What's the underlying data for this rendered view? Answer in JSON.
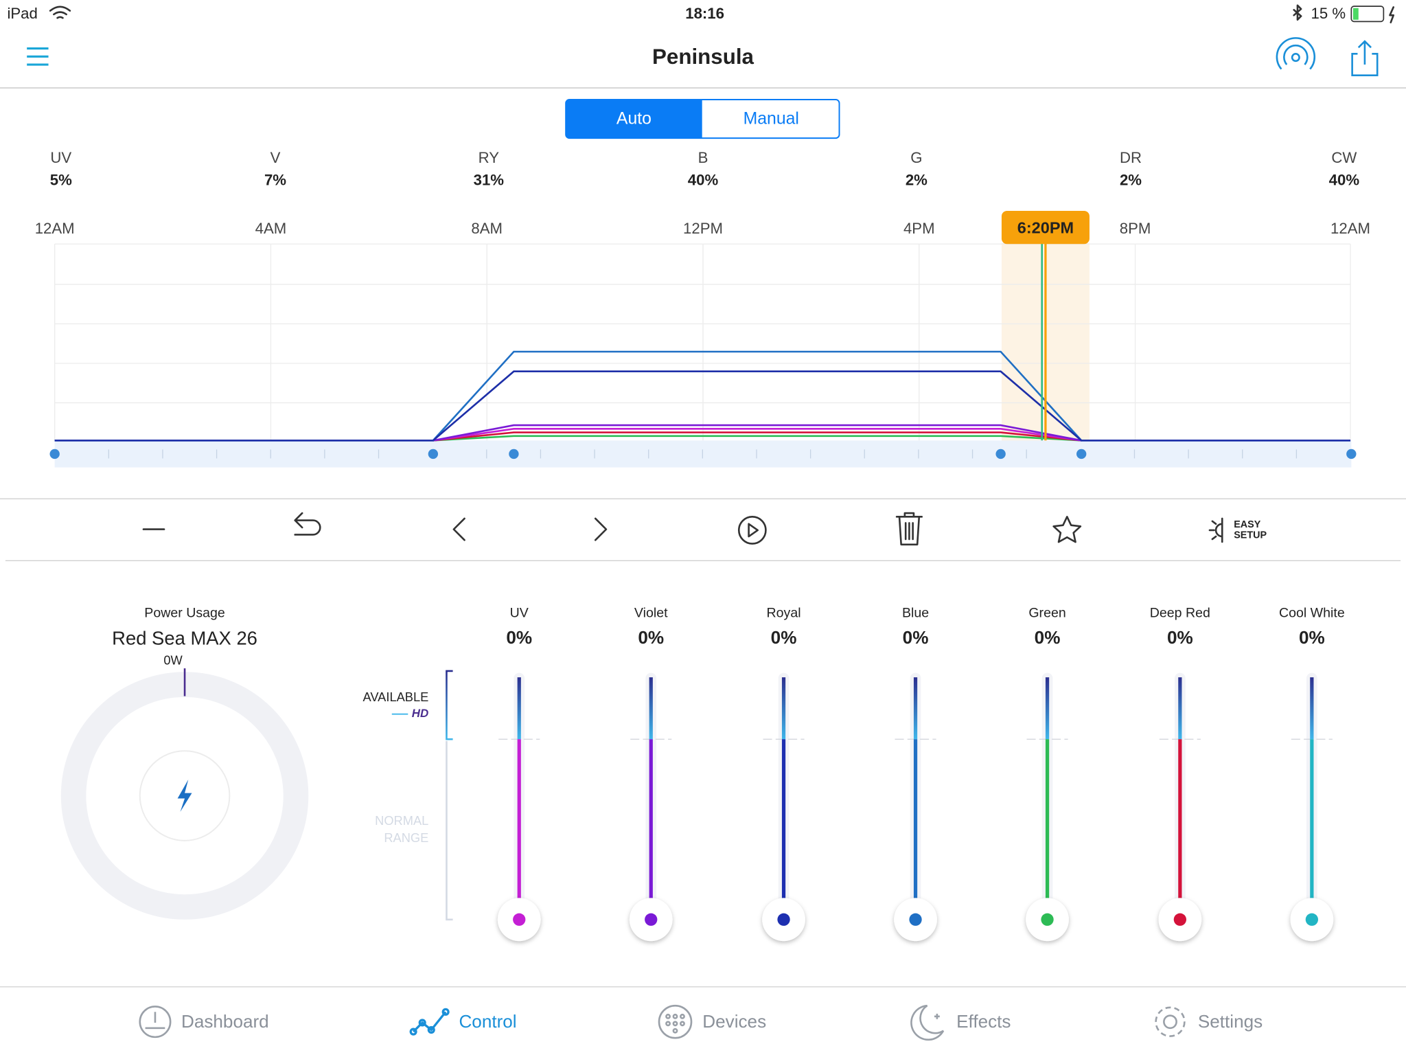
{
  "status_bar": {
    "device": "iPad",
    "time": "18:16",
    "battery": "15 %"
  },
  "header": {
    "title": "Peninsula"
  },
  "mode_toggle": {
    "options": [
      "Auto",
      "Manual"
    ]
  },
  "channel_levels": [
    {
      "label": "UV",
      "value": "5%"
    },
    {
      "label": "V",
      "value": "7%"
    },
    {
      "label": "RY",
      "value": "31%"
    },
    {
      "label": "B",
      "value": "40%"
    },
    {
      "label": "G",
      "value": "2%"
    },
    {
      "label": "DR",
      "value": "2%"
    },
    {
      "label": "CW",
      "value": "40%"
    }
  ],
  "timeline": {
    "labels": [
      "12AM",
      "4AM",
      "8AM",
      "12PM",
      "4PM",
      "8PM",
      "12AM"
    ],
    "current_time": "6:20PM"
  },
  "toolbar": {
    "easy_setup": [
      "EASY",
      "SETUP"
    ]
  },
  "power": {
    "label": "Power Usage",
    "device": "Red Sea MAX 26",
    "watts": "0W"
  },
  "range_labels": {
    "available": "AVAILABLE",
    "hd": "HD",
    "normal_range": [
      "NORMAL",
      "RANGE"
    ]
  },
  "sliders": [
    {
      "name": "UV",
      "value": "0%",
      "color": "#c41fd4"
    },
    {
      "name": "Violet",
      "value": "0%",
      "color": "#7a1ad6"
    },
    {
      "name": "Royal",
      "value": "0%",
      "color": "#1d2fb0"
    },
    {
      "name": "Blue",
      "value": "0%",
      "color": "#1f6fc4"
    },
    {
      "name": "Green",
      "value": "0%",
      "color": "#2dbb55"
    },
    {
      "name": "Deep Red",
      "value": "0%",
      "color": "#d4123a"
    },
    {
      "name": "Cool White",
      "value": "0%",
      "color": "#22b5c4"
    }
  ],
  "tabs": [
    "Dashboard",
    "Control",
    "Devices",
    "Effects",
    "Settings"
  ]
}
